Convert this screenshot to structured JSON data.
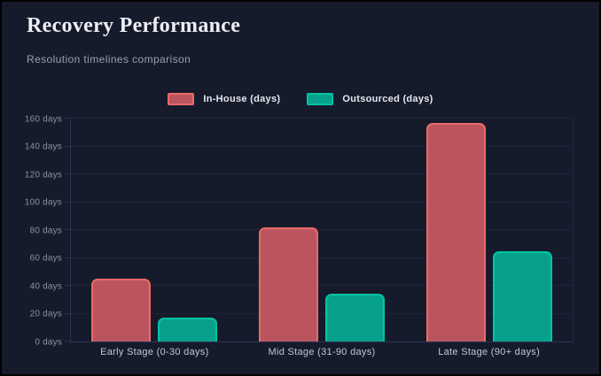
{
  "header": {
    "title": "Recovery Performance",
    "subtitle": "Resolution timelines comparison"
  },
  "colors": {
    "background": "#161b2c",
    "frame_border": "#010103",
    "gridline": "#1e2439",
    "axis_line": "#2b3350",
    "ytick_text": "#8a91a0",
    "xtick_text": "#c3c8d2",
    "legend_text": "#e4e7ec",
    "title_text": "#edeff4",
    "subtitle_text": "#98a0ac",
    "inhouse_fill": "#ba5560",
    "inhouse_border": "#ec6a68",
    "outsourced_fill": "#07a18b",
    "outsourced_border": "#00c4a5"
  },
  "chart_data": {
    "type": "bar",
    "title": "Recovery Performance",
    "subtitle": "Resolution timelines comparison",
    "categories": [
      "Early Stage (0-30 days)",
      "Mid Stage (31-90 days)",
      "Late Stage (90+ days)"
    ],
    "series": [
      {
        "name": "In-House (days)",
        "values": [
          45,
          82,
          157
        ],
        "fill": "#ba5560",
        "border": "#ec6a68"
      },
      {
        "name": "Outsourced (days)",
        "values": [
          17,
          34,
          65
        ],
        "fill": "#07a18b",
        "border": "#00c4a5"
      }
    ],
    "yticks": [
      0,
      20,
      40,
      60,
      80,
      100,
      120,
      140,
      160
    ],
    "ytick_suffix": " days",
    "ylim": [
      0,
      160
    ],
    "grid": true,
    "legend_position": "top-center",
    "xlabel": "",
    "ylabel": ""
  }
}
